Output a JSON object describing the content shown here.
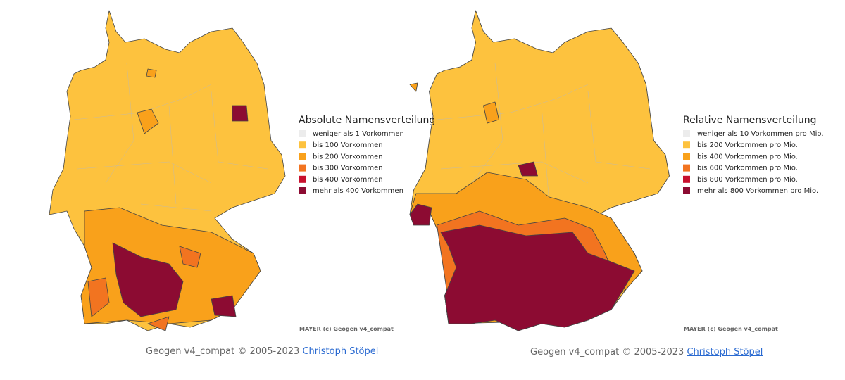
{
  "maps": [
    {
      "legend": {
        "title": "Absolute Namensverteilung",
        "items": [
          {
            "label": "weniger als 1 Vorkommen",
            "color": "#ececec"
          },
          {
            "label": "bis 100 Vorkommen",
            "color": "#fdc23e"
          },
          {
            "label": "bis 200 Vorkommen",
            "color": "#f9a11b"
          },
          {
            "label": "bis 300 Vorkommen",
            "color": "#f27420"
          },
          {
            "label": "bis 400 Vorkommen",
            "color": "#c8102e"
          },
          {
            "label": "mehr als 400 Vorkommen",
            "color": "#8c0b32"
          }
        ]
      },
      "watermark": "MAYER (c) Geogen v4_compat",
      "footer": {
        "text": "Geogen v4_compat © 2005-2023",
        "link": "Christoph Stöpel"
      }
    },
    {
      "legend": {
        "title": "Relative Namensverteilung",
        "items": [
          {
            "label": "weniger als 10 Vorkommen pro Mio.",
            "color": "#ececec"
          },
          {
            "label": "bis 200 Vorkommen pro Mio.",
            "color": "#fdc23e"
          },
          {
            "label": "bis 400 Vorkommen pro Mio.",
            "color": "#f9a11b"
          },
          {
            "label": "bis 600 Vorkommen pro Mio.",
            "color": "#f27420"
          },
          {
            "label": "bis 800 Vorkommen pro Mio.",
            "color": "#c8102e"
          },
          {
            "label": "mehr als 800 Vorkommen pro Mio.",
            "color": "#8c0b32"
          }
        ]
      },
      "watermark": "MAYER (c) Geogen v4_compat",
      "footer": {
        "text": "Geogen v4_compat © 2005-2023",
        "link": "Christoph Stöpel"
      }
    }
  ]
}
